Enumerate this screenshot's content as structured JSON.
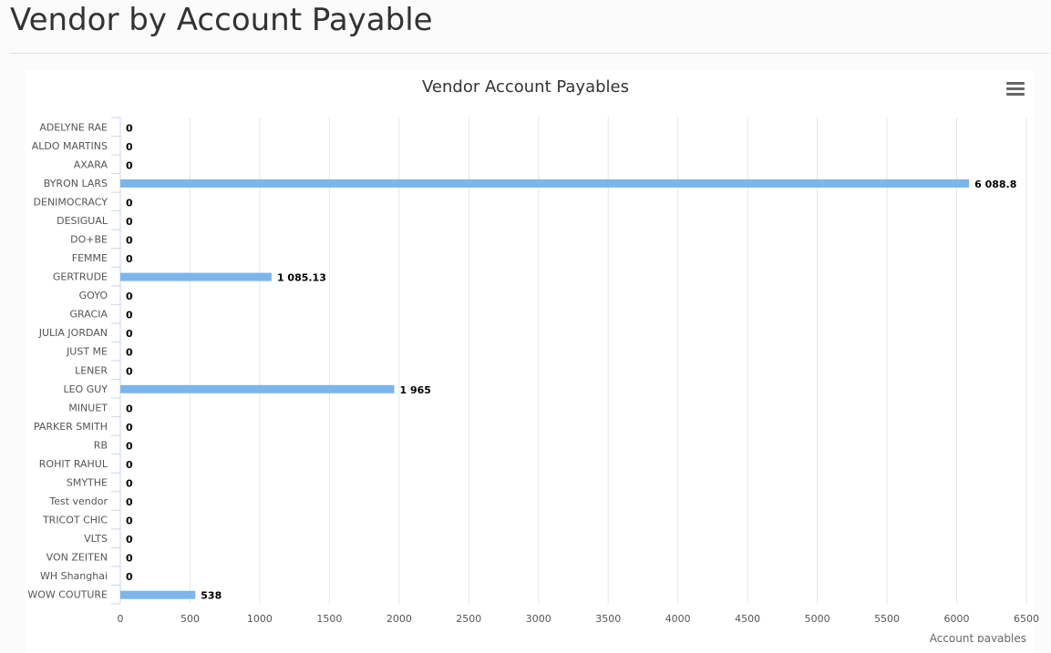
{
  "page": {
    "title": "Vendor by Account Payable"
  },
  "menu": {
    "icon": "hamburger-menu-icon"
  },
  "colors": {
    "bar": "#7cb5ec",
    "grid": "#e6e6e6",
    "axis": "#ccd6eb"
  },
  "chart_data": {
    "type": "bar",
    "orientation": "horizontal",
    "title": "Vendor Account Payables",
    "xlabel": "Account payables",
    "ylabel": "",
    "xlim": [
      0,
      6500
    ],
    "ticks": [
      "0",
      "500",
      "1000",
      "1500",
      "2000",
      "2500",
      "3000",
      "3500",
      "4000",
      "4500",
      "5000",
      "5500",
      "6000",
      "6500"
    ],
    "tick_values": [
      0,
      500,
      1000,
      1500,
      2000,
      2500,
      3000,
      3500,
      4000,
      4500,
      5000,
      5500,
      6000,
      6500
    ],
    "grid": true,
    "categories": [
      "ADELYNE RAE",
      "ALDO MARTINS",
      "AXARA",
      "BYRON LARS",
      "DENIMOCRACY",
      "DESIGUAL",
      "DO+BE",
      "FEMME",
      "GERTRUDE",
      "GOYO",
      "GRACIA",
      "JULIA JORDAN",
      "JUST ME",
      "LENER",
      "LEO GUY",
      "MINUET",
      "PARKER SMITH",
      "RB",
      "ROHIT RAHUL",
      "SMYTHE",
      "Test vendor",
      "TRICOT CHIC",
      "VLTS",
      "VON ZEITEN",
      "WH Shanghai",
      "WOW COUTURE"
    ],
    "values": [
      0,
      0,
      0,
      6088.8,
      0,
      0,
      0,
      0,
      1085.13,
      0,
      0,
      0,
      0,
      0,
      1965,
      0,
      0,
      0,
      0,
      0,
      0,
      0,
      0,
      0,
      0,
      538
    ],
    "labels": [
      "0",
      "0",
      "0",
      "6 088.8",
      "0",
      "0",
      "0",
      "0",
      "1 085.13",
      "0",
      "0",
      "0",
      "0",
      "0",
      "1 965",
      "0",
      "0",
      "0",
      "0",
      "0",
      "0",
      "0",
      "0",
      "0",
      "0",
      "538"
    ]
  }
}
